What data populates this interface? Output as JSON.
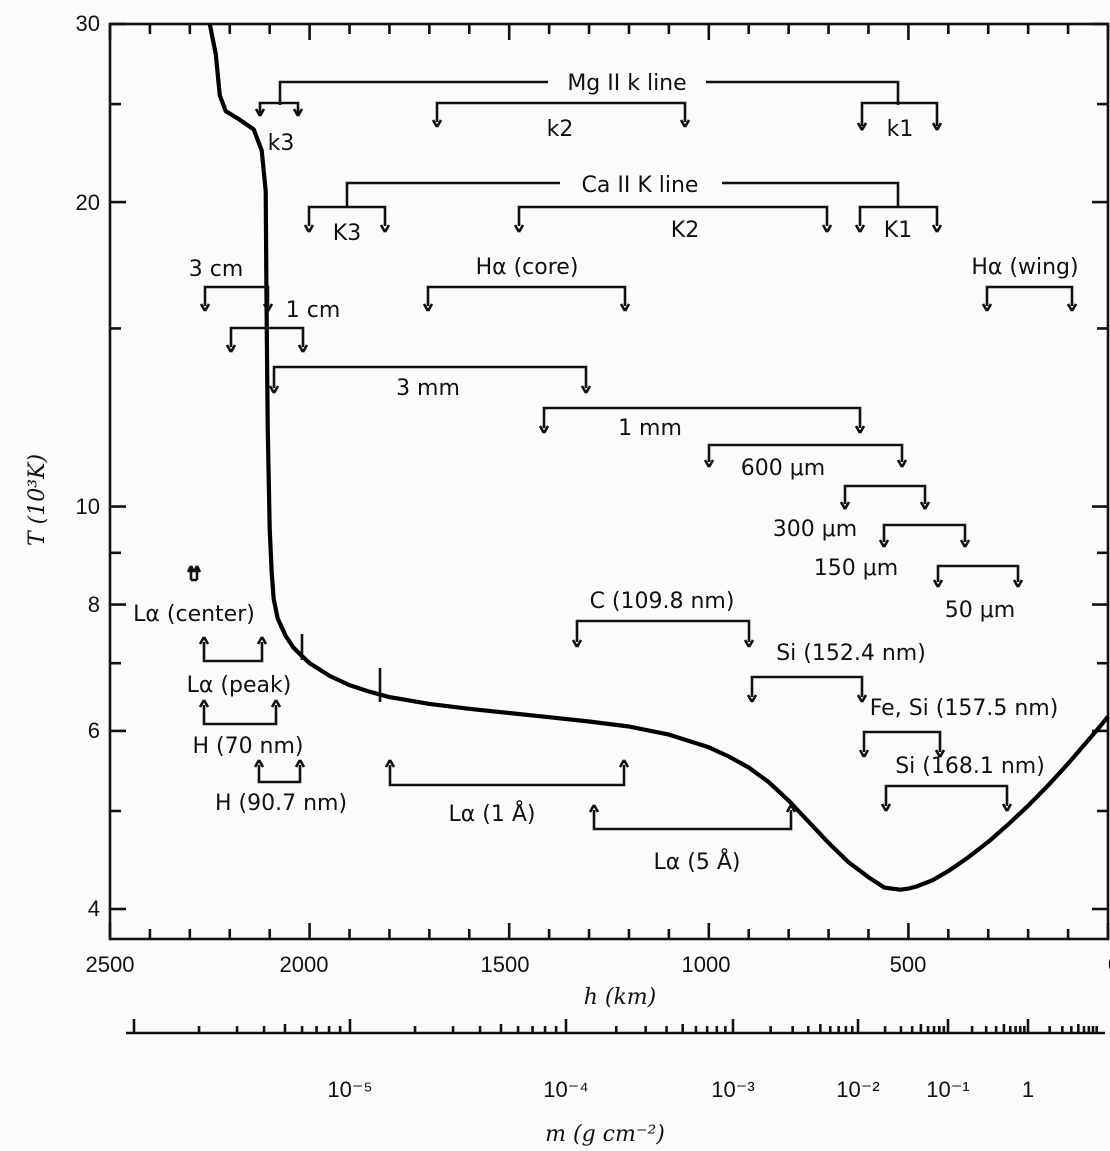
{
  "chart_data": {
    "type": "line",
    "title": "",
    "ylabel": "T (10³K)",
    "xlabel": "h (km)",
    "x_ticks": [
      "2500",
      "2000",
      "1500",
      "1000",
      "500",
      "0"
    ],
    "y_ticks": [
      "30",
      "20",
      "10",
      "8",
      "6",
      "4"
    ],
    "xlim": [
      2500,
      0
    ],
    "ylim": [
      4,
      30
    ],
    "y_scale": "log",
    "series": [
      {
        "x": [
          2250,
          2235,
          2225,
          2210,
          2180,
          2140,
          2120,
          2110,
          2108,
          2105,
          2100,
          2095,
          2090,
          2080,
          2060,
          2040,
          2020,
          2000,
          1950,
          1900,
          1850,
          1800,
          1700,
          1600,
          1500,
          1400,
          1300,
          1200,
          1100,
          1000,
          950,
          900,
          850,
          800,
          750,
          700,
          650,
          600,
          560,
          520,
          500,
          480,
          440,
          400,
          350,
          300,
          250,
          200,
          150,
          100,
          50,
          20,
          0
        ],
        "y": [
          30,
          28,
          25.5,
          24.6,
          24.2,
          23.6,
          22.5,
          20.5,
          16,
          12,
          9.5,
          8.6,
          8.1,
          7.75,
          7.45,
          7.25,
          7.12,
          7.0,
          6.8,
          6.66,
          6.56,
          6.48,
          6.38,
          6.31,
          6.25,
          6.19,
          6.13,
          6.06,
          5.95,
          5.78,
          5.66,
          5.52,
          5.34,
          5.12,
          4.88,
          4.65,
          4.45,
          4.3,
          4.2,
          4.18,
          4.19,
          4.21,
          4.27,
          4.36,
          4.5,
          4.66,
          4.85,
          5.06,
          5.3,
          5.57,
          5.87,
          6.06,
          6.2
        ]
      }
    ],
    "bracket_labels": [
      "Mg II k line",
      "k3",
      "k2",
      "k1",
      "Ca II K line",
      "K3",
      "K2",
      "K1",
      "3 cm",
      "1 cm",
      "Hα (core)",
      "Hα (wing)",
      "3 mm",
      "1 mm",
      "600 μm",
      "300 μm",
      "150 μm",
      "50 μm",
      "Lα (center)",
      "Lα (peak)",
      "H (70 nm)",
      "H (90.7 nm)",
      "C (109.8 nm)",
      "Si (152.4 nm)",
      "Fe, Si (157.5 nm)",
      "Si (168.1 nm)",
      "Lα (1 Å)",
      "Lα (5 Å)"
    ],
    "mass_axis": {
      "label": "m (g cm⁻²)",
      "ticks": [
        "10⁻⁵",
        "10⁻⁴",
        "10⁻³",
        "10⁻²",
        "10⁻¹",
        "1"
      ]
    }
  }
}
